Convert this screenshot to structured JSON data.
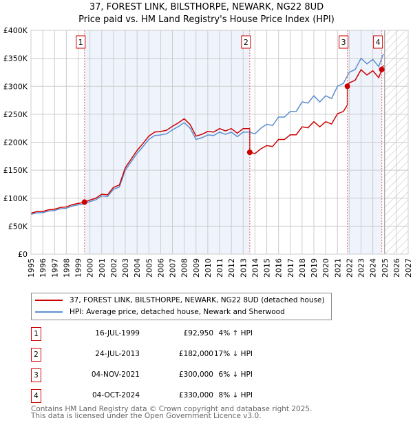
{
  "title": "37, FOREST LINK, BILSTHORPE, NEWARK, NG22 8UD",
  "subtitle": "Price paid vs. HM Land Registry's House Price Index (HPI)",
  "chart_data": {
    "type": "line",
    "xlim": [
      1995,
      2027
    ],
    "ylim": [
      0,
      400000
    ],
    "x_ticks": [
      "1995",
      "1996",
      "1997",
      "1998",
      "1999",
      "2000",
      "2001",
      "2002",
      "2003",
      "2004",
      "2005",
      "2006",
      "2007",
      "2008",
      "2009",
      "2010",
      "2011",
      "2012",
      "2013",
      "2014",
      "2015",
      "2016",
      "2017",
      "2018",
      "2019",
      "2020",
      "2021",
      "2022",
      "2023",
      "2024",
      "2025",
      "2026",
      "2027"
    ],
    "y_ticks": [
      {
        "v": 0,
        "label": "£0"
      },
      {
        "v": 50000,
        "label": "£50K"
      },
      {
        "v": 100000,
        "label": "£100K"
      },
      {
        "v": 150000,
        "label": "£150K"
      },
      {
        "v": 200000,
        "label": "£200K"
      },
      {
        "v": 250000,
        "label": "£250K"
      },
      {
        "v": 300000,
        "label": "£300K"
      },
      {
        "v": 350000,
        "label": "£350K"
      },
      {
        "v": 400000,
        "label": "£400K"
      }
    ],
    "forecast_start": 2025.0,
    "hpi_series": {
      "name": "HPI: Average price, detached house, Newark and Sherwood",
      "color": "#5b8fd0",
      "x": [
        1995,
        1995.5,
        1996,
        1996.5,
        1997,
        1997.5,
        1998,
        1998.5,
        1999,
        1999.5,
        2000,
        2000.5,
        2001,
        2001.5,
        2002,
        2002.5,
        2003,
        2003.5,
        2004,
        2004.5,
        2005,
        2005.5,
        2006,
        2006.5,
        2007,
        2007.5,
        2008,
        2008.5,
        2009,
        2009.5,
        2010,
        2010.5,
        2011,
        2011.5,
        2012,
        2012.5,
        2013,
        2013.5,
        2014,
        2014.5,
        2015,
        2015.5,
        2016,
        2016.5,
        2017,
        2017.5,
        2018,
        2018.5,
        2019,
        2019.5,
        2020,
        2020.5,
        2021,
        2021.5,
        2022,
        2022.5,
        2023,
        2023.5,
        2024,
        2024.5,
        2024.9
      ],
      "y": [
        71000,
        74000,
        74000,
        77000,
        78000,
        81000,
        82000,
        86000,
        88000,
        90000,
        94000,
        97000,
        104000,
        103000,
        116000,
        120000,
        150000,
        165000,
        180000,
        192000,
        205000,
        212000,
        213000,
        215000,
        222000,
        228000,
        235000,
        225000,
        205000,
        208000,
        213000,
        212000,
        218000,
        214000,
        218000,
        210000,
        218000,
        218000,
        215000,
        225000,
        232000,
        230000,
        245000,
        245000,
        255000,
        255000,
        272000,
        270000,
        283000,
        272000,
        283000,
        278000,
        300000,
        305000,
        325000,
        330000,
        350000,
        340000,
        348000,
        335000,
        358000
      ]
    },
    "price_series": {
      "name": "37, FOREST LINK, BILSTHORPE, NEWARK, NG22 8UD (detached house)",
      "color": "#cc0000"
    },
    "sales": [
      {
        "num": "1",
        "x": 1999.54,
        "price": 92950,
        "date": "16-JUL-1999",
        "price_label": "£92,950",
        "hpi_label": "4% ↑ HPI"
      },
      {
        "num": "2",
        "x": 2013.56,
        "price": 182000,
        "date": "24-JUL-2013",
        "price_label": "£182,000",
        "hpi_label": "17% ↓ HPI"
      },
      {
        "num": "3",
        "x": 2021.84,
        "price": 300000,
        "date": "04-NOV-2021",
        "price_label": "£300,000",
        "hpi_label": "6% ↓ HPI"
      },
      {
        "num": "4",
        "x": 2024.76,
        "price": 330000,
        "date": "04-OCT-2024",
        "price_label": "£330,000",
        "hpi_label": "8% ↓ HPI"
      }
    ]
  },
  "legend": {
    "price_label": "37, FOREST LINK, BILSTHORPE, NEWARK, NG22 8UD (detached house)",
    "hpi_label": "HPI: Average price, detached house, Newark and Sherwood"
  },
  "footer": {
    "line1": "Contains HM Land Registry data © Crown copyright and database right 2025.",
    "line2": "This data is licensed under the Open Government Licence v3.0."
  }
}
